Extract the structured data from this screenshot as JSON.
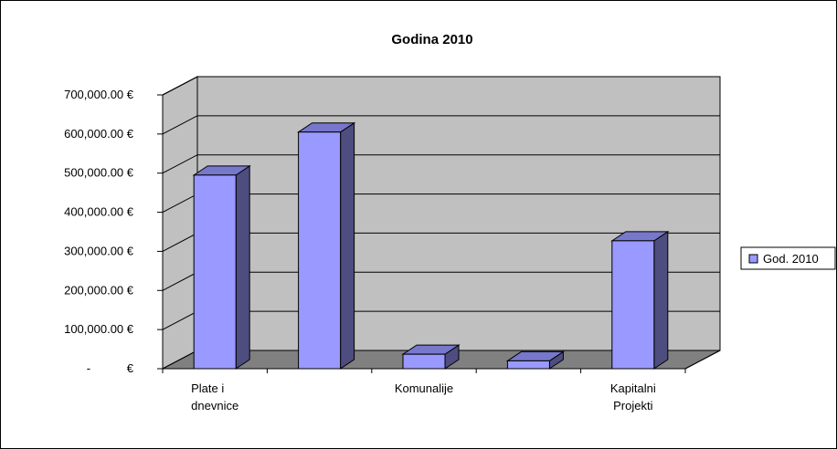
{
  "chart_data": {
    "type": "bar",
    "title": "Godina 2010",
    "categories": [
      "Plate i dnevnice",
      "",
      "Komunalije",
      "",
      "Kapitalni Projekti"
    ],
    "category_label_lines": [
      [
        "Plate i",
        "dnevnice"
      ],
      [],
      [
        "Komunalije"
      ],
      [],
      [
        "Kapitalni",
        "Projekti"
      ]
    ],
    "series": [
      {
        "name": "God. 2010",
        "values": [
          495000,
          605000,
          37000,
          20000,
          327000
        ]
      }
    ],
    "ylim": [
      0,
      700000
    ],
    "y_ticks": [
      0,
      100000,
      200000,
      300000,
      400000,
      500000,
      600000,
      700000
    ],
    "y_tick_labels": [
      "-           €",
      "100,000.00 €",
      "200,000.00 €",
      "300,000.00 €",
      "400,000.00 €",
      "500,000.00 €",
      "600,000.00 €",
      "700,000.00 €"
    ],
    "grid": true,
    "three_d": true,
    "legend_position": "right",
    "colors": {
      "bar_front": "#9999ff",
      "bar_side": "#4d4d80",
      "bar_top": "#7777cc",
      "wall": "#c0c0c0",
      "floor": "#808080",
      "grid": "#000000"
    }
  }
}
